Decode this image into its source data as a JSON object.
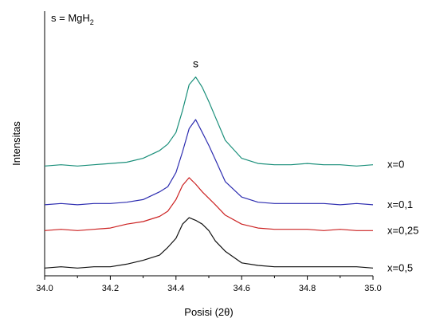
{
  "chart_data": {
    "type": "line",
    "title": "",
    "xlabel": "Posisi (2θ)",
    "ylabel": "Intensitas",
    "xlim": [
      34.0,
      35.0
    ],
    "x_ticks": [
      "34.0",
      "34.2",
      "34.4",
      "34.6",
      "34.8",
      "35.0"
    ],
    "y_ticks_shown": false,
    "grid": false,
    "annotation_peak": "s",
    "note": {
      "prefix": "s = MgH",
      "subscript": "2"
    },
    "x": [
      34.0,
      34.05,
      34.1,
      34.15,
      34.2,
      34.25,
      34.3,
      34.35,
      34.375,
      34.4,
      34.42,
      34.44,
      34.46,
      34.48,
      34.5,
      34.52,
      34.55,
      34.6,
      34.65,
      34.7,
      34.75,
      34.8,
      34.85,
      34.9,
      34.95,
      35.0
    ],
    "series": [
      {
        "name": "x=0",
        "color": "#1a8f7a",
        "values": [
          0.5,
          0.51,
          0.5,
          0.51,
          0.52,
          0.53,
          0.56,
          0.62,
          0.67,
          0.76,
          0.93,
          1.13,
          1.19,
          1.11,
          1.0,
          0.88,
          0.7,
          0.56,
          0.52,
          0.51,
          0.51,
          0.52,
          0.51,
          0.51,
          0.5,
          0.51
        ]
      },
      {
        "name": "x=0,1",
        "color": "#2d2db0",
        "values": [
          0.2,
          0.21,
          0.2,
          0.21,
          0.21,
          0.22,
          0.24,
          0.3,
          0.34,
          0.45,
          0.61,
          0.79,
          0.86,
          0.76,
          0.66,
          0.55,
          0.38,
          0.26,
          0.22,
          0.21,
          0.21,
          0.21,
          0.21,
          0.2,
          0.21,
          0.2
        ]
      },
      {
        "name": "x=0,25",
        "color": "#cc2222",
        "values": [
          0.0,
          0.01,
          0.0,
          0.01,
          0.02,
          0.05,
          0.07,
          0.11,
          0.15,
          0.24,
          0.35,
          0.41,
          0.36,
          0.3,
          0.25,
          0.2,
          0.12,
          0.05,
          0.02,
          0.01,
          0.01,
          0.01,
          0.0,
          0.01,
          0.0,
          0.0
        ]
      },
      {
        "name": "x=0,5",
        "color": "#111111",
        "values": [
          -0.29,
          -0.28,
          -0.29,
          -0.28,
          -0.28,
          -0.26,
          -0.23,
          -0.19,
          -0.13,
          -0.06,
          0.05,
          0.1,
          0.08,
          0.05,
          0.0,
          -0.08,
          -0.16,
          -0.25,
          -0.27,
          -0.28,
          -0.28,
          -0.28,
          -0.28,
          -0.28,
          -0.28,
          -0.29
        ]
      }
    ],
    "ylim": [
      -0.35,
      1.7
    ]
  }
}
